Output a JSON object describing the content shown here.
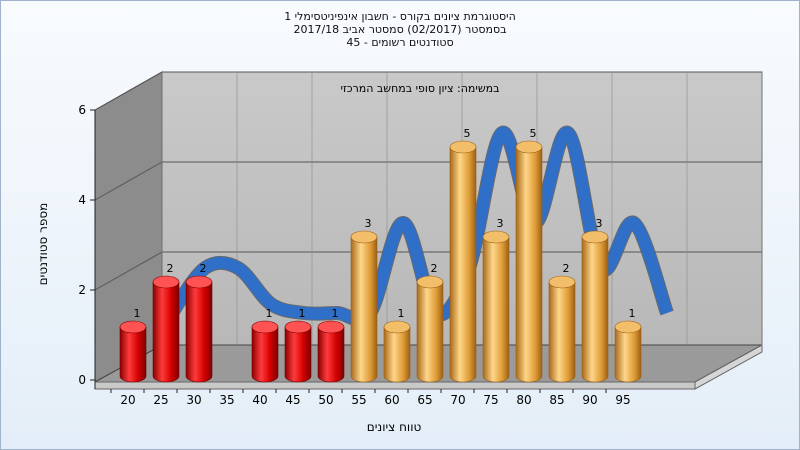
{
  "chart_data": {
    "type": "bar",
    "title_lines": [
      "היסטוגרמת ציונים בקורס - חשבון אינפיניטסימלי 1",
      "בסמסטר  (02/2017)  סמסטר אביב 2017/18",
      "סטודנטים רשומים - 45"
    ],
    "annotation": "במשימה: ציון סופי במחשב המרכזי",
    "xlabel": "טווח ציונים",
    "ylabel": "מספר סטודנטים",
    "ylim": [
      0,
      6
    ],
    "yticks": [
      "0",
      "2",
      "4",
      "6"
    ],
    "categories": [
      "20",
      "25",
      "30",
      "35",
      "40",
      "45",
      "50",
      "55",
      "60",
      "65",
      "70",
      "75",
      "80",
      "85",
      "90",
      "95"
    ],
    "values": [
      1,
      2,
      2,
      null,
      1,
      1,
      1,
      3,
      1,
      2,
      5,
      3,
      5,
      2,
      3,
      1
    ],
    "bar_colors": [
      "#e21b1b",
      "#e21b1b",
      "#e21b1b",
      null,
      "#e21b1b",
      "#e21b1b",
      "#e21b1b",
      "#e3a239",
      "#e3a239",
      "#e3a239",
      "#e3a239",
      "#e3a239",
      "#e3a239",
      "#e3a239",
      "#e3a239",
      "#e3a239"
    ],
    "trend_color": "#2f6fc8",
    "trend_shadow_color": "#5a5a5a",
    "grid": true
  }
}
